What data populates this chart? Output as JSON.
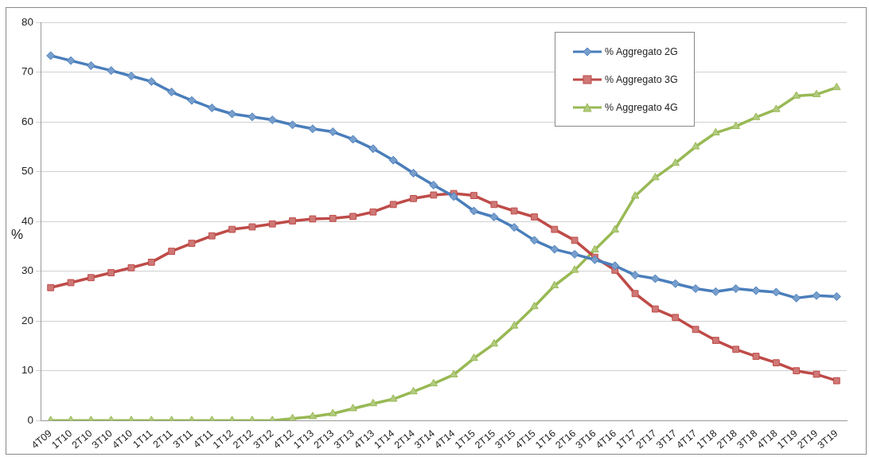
{
  "chart_data": {
    "type": "line",
    "ylabel": "%",
    "categories": [
      "4T09",
      "1T10",
      "2T10",
      "3T10",
      "4T10",
      "1T11",
      "2T11",
      "3T11",
      "4T11",
      "1T12",
      "2T12",
      "3T12",
      "4T12",
      "1T13",
      "2T13",
      "3T13",
      "4T13",
      "1T14",
      "2T14",
      "3T14",
      "4T14",
      "1T15",
      "2T15",
      "3T15",
      "4T15",
      "1T16",
      "2T16",
      "3T16",
      "4T16",
      "1T17",
      "2T17",
      "3T17",
      "4T17",
      "1T18",
      "2T18",
      "3T18",
      "4T18",
      "1T19",
      "2T19",
      "3T19"
    ],
    "series": [
      {
        "name": "% Aggregato 2G",
        "color": "#4a7ebb",
        "marker": "diamond",
        "values": [
          73.3,
          72.3,
          71.3,
          70.3,
          69.2,
          68.1,
          66.0,
          64.3,
          62.8,
          61.6,
          61.0,
          60.4,
          59.4,
          58.6,
          58.0,
          56.5,
          54.6,
          52.3,
          49.7,
          47.3,
          45.0,
          42.1,
          40.9,
          38.8,
          36.2,
          34.4,
          33.4,
          32.3,
          31.1,
          29.2,
          28.5,
          27.5,
          26.5,
          25.9,
          26.5,
          26.1,
          25.8,
          24.6,
          25.1,
          24.9
        ]
      },
      {
        "name": "% Aggregato 3G",
        "color": "#be4b48",
        "marker": "square",
        "values": [
          26.7,
          27.7,
          28.7,
          29.7,
          30.7,
          31.8,
          34.0,
          35.6,
          37.1,
          38.4,
          38.9,
          39.5,
          40.1,
          40.5,
          40.6,
          41.0,
          41.9,
          43.4,
          44.6,
          45.3,
          45.6,
          45.2,
          43.4,
          42.1,
          40.9,
          38.4,
          36.2,
          32.8,
          30.2,
          25.5,
          22.4,
          20.7,
          18.3,
          16.1,
          14.3,
          12.9,
          11.6,
          10.0,
          9.3,
          8.0
        ]
      },
      {
        "name": "% Aggregato 4G",
        "color": "#98b954",
        "marker": "triangle",
        "values": [
          0,
          0,
          0,
          0,
          0,
          0,
          0,
          0,
          0,
          0,
          0,
          0,
          0.4,
          0.8,
          1.4,
          2.4,
          3.4,
          4.3,
          5.8,
          7.4,
          9.2,
          12.5,
          15.4,
          19.0,
          22.9,
          27.1,
          30.2,
          34.3,
          38.3,
          45.1,
          48.8,
          51.7,
          55.0,
          57.8,
          59.1,
          60.9,
          62.5,
          65.2,
          65.5,
          66.9
        ]
      }
    ],
    "ylim": [
      0,
      80
    ],
    "yticks": [
      0,
      10,
      20,
      30,
      40,
      50,
      60,
      70,
      80
    ],
    "grid": "y",
    "legend": "top right",
    "line_style": "solid"
  }
}
